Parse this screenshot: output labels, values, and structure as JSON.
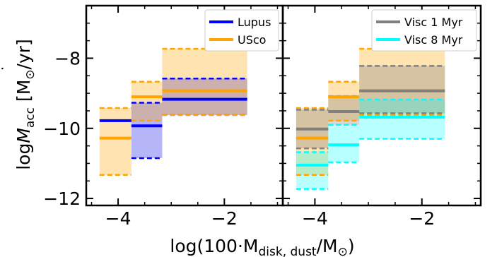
{
  "chart_data": [
    {
      "type": "area",
      "panel": "left",
      "xlim": [
        -4.6,
        -0.9
      ],
      "ylim": [
        -12.2,
        -6.5
      ],
      "xticks": [
        -4,
        -2
      ],
      "yticks": [
        -12,
        -10,
        -8
      ],
      "xtick_labels": [
        "−4",
        "−2"
      ],
      "ytick_labels": [
        "−12",
        "−10",
        "−8"
      ],
      "legend_position": "top-right",
      "series": [
        {
          "name": "Lupus",
          "color": "#0000ff",
          "fill_color": "#5a5aef",
          "fill_opacity": 0.45,
          "bins": [
            {
              "x0": -4.35,
              "x1": -3.75,
              "median": -9.78,
              "low": null,
              "high": null
            },
            {
              "x0": -3.75,
              "x1": -3.17,
              "median": -9.93,
              "low": -10.85,
              "high": -9.27
            },
            {
              "x0": -3.17,
              "x1": -1.57,
              "median": -9.17,
              "low": -9.62,
              "high": -8.58
            }
          ]
        },
        {
          "name": "USco",
          "color": "#ffa500",
          "fill_color": "#ffa500",
          "fill_opacity": 0.3,
          "bins": [
            {
              "x0": -4.35,
              "x1": -3.75,
              "median": -10.28,
              "low": -11.33,
              "high": -9.42
            },
            {
              "x0": -3.75,
              "x1": -3.17,
              "median": -9.1,
              "low": -9.78,
              "high": -8.67
            },
            {
              "x0": -3.17,
              "x1": -1.57,
              "median": -8.93,
              "low": -9.62,
              "high": -7.73
            }
          ]
        }
      ]
    },
    {
      "type": "area",
      "panel": "right",
      "xlim": [
        -4.6,
        -0.9
      ],
      "ylim": [
        -12.2,
        -6.5
      ],
      "xticks": [
        -4,
        -2
      ],
      "xtick_labels": [
        "−4",
        "−2"
      ],
      "legend_position": "top-right",
      "series": [
        {
          "name": "USco",
          "in_legend": false,
          "color": "#ffa500",
          "fill_color": "#ffa500",
          "fill_opacity": 0.3,
          "bins": [
            {
              "x0": -4.35,
              "x1": -3.75,
              "median": -10.28,
              "low": -11.33,
              "high": -9.42
            },
            {
              "x0": -3.75,
              "x1": -3.17,
              "median": -9.1,
              "low": -9.78,
              "high": -8.67
            },
            {
              "x0": -3.17,
              "x1": -1.57,
              "median": -8.93,
              "low": -9.62,
              "high": -7.73
            }
          ]
        },
        {
          "name": "Visc 1 Myr",
          "color": "#808080",
          "fill_color": "#808080",
          "fill_opacity": 0.32,
          "bins": [
            {
              "x0": -4.35,
              "x1": -3.75,
              "median": -10.02,
              "low": -10.57,
              "high": -9.47
            },
            {
              "x0": -3.75,
              "x1": -3.17,
              "median": -9.52,
              "low": -9.9,
              "high": -9.08
            },
            {
              "x0": -3.17,
              "x1": -1.57,
              "median": -8.93,
              "low": -9.57,
              "high": -8.22
            }
          ]
        },
        {
          "name": "Visc 8 Myr",
          "color": "#00ffff",
          "fill_color": "#00ffff",
          "fill_opacity": 0.28,
          "bins": [
            {
              "x0": -4.35,
              "x1": -3.75,
              "median": -11.05,
              "low": -11.73,
              "high": -10.68
            },
            {
              "x0": -3.75,
              "x1": -3.17,
              "median": -10.47,
              "low": -10.97,
              "high": -9.9
            },
            {
              "x0": -3.17,
              "x1": -1.57,
              "median": -9.68,
              "low": -10.3,
              "high": -9.18
            }
          ]
        }
      ]
    }
  ],
  "labels": {
    "ylabel_main": "log",
    "ylabel_symbol": "M",
    "ylabel_symbol_dot": "˙",
    "ylabel_sub": "acc",
    "ylabel_unit_open": " [M",
    "ylabel_unit_sun": "⊙",
    "ylabel_unit_close": "/yr]",
    "xlabel_main": "log(100·M",
    "xlabel_sub": "disk, dust",
    "xlabel_unit": "/M",
    "xlabel_sun": "⊙",
    "xlabel_close": ")"
  }
}
